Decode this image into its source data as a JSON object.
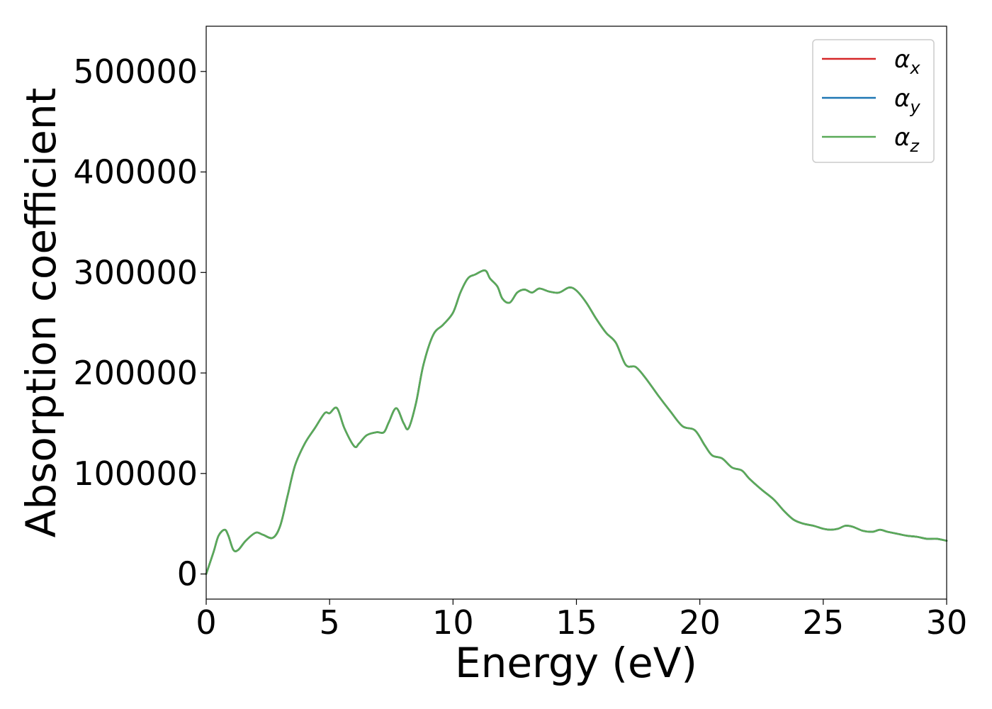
{
  "chart_data": {
    "type": "line",
    "xlabel": "Energy (eV)",
    "ylabel": "Absorption coefficient",
    "xlim": [
      0,
      30
    ],
    "ylim": [
      -25000,
      545000
    ],
    "xticks": [
      0,
      5,
      10,
      15,
      20,
      25,
      30
    ],
    "xtick_labels": [
      "0",
      "5",
      "10",
      "15",
      "20",
      "25",
      "30"
    ],
    "yticks": [
      0,
      100000,
      200000,
      300000,
      400000,
      500000
    ],
    "ytick_labels": [
      "0",
      "100000",
      "200000",
      "300000",
      "400000",
      "500000"
    ],
    "grid": false,
    "legend_position": "top-right",
    "x": [
      0,
      0.3,
      0.5,
      0.75,
      0.9,
      1.1,
      1.3,
      1.6,
      2.0,
      2.3,
      2.7,
      3.0,
      3.3,
      3.6,
      4.0,
      4.4,
      4.8,
      5.0,
      5.3,
      5.6,
      6.0,
      6.2,
      6.5,
      6.9,
      7.2,
      7.4,
      7.7,
      8.0,
      8.2,
      8.5,
      8.8,
      9.2,
      9.6,
      10.0,
      10.3,
      10.6,
      10.9,
      11.3,
      11.5,
      11.8,
      12.0,
      12.3,
      12.6,
      12.9,
      13.2,
      13.5,
      13.9,
      14.3,
      14.7,
      15.0,
      15.4,
      15.8,
      16.2,
      16.6,
      17.0,
      17.4,
      17.8,
      18.3,
      18.8,
      19.3,
      19.8,
      20.2,
      20.5,
      20.9,
      21.3,
      21.7,
      22.0,
      22.5,
      23.0,
      23.4,
      23.8,
      24.2,
      24.6,
      25.0,
      25.3,
      25.6,
      25.9,
      26.2,
      26.6,
      27.0,
      27.3,
      27.6,
      28.0,
      28.4,
      28.8,
      29.2,
      29.6,
      30.0
    ],
    "series": [
      {
        "name": "α_x",
        "color": "#d62728",
        "values": [
          0,
          22000,
          38000,
          44000,
          38000,
          24000,
          24000,
          33000,
          41000,
          39000,
          36000,
          48000,
          78000,
          108000,
          130000,
          145000,
          160000,
          160000,
          165000,
          145000,
          127000,
          130000,
          138000,
          141000,
          141000,
          151000,
          165000,
          150000,
          145000,
          170000,
          208000,
          238000,
          248000,
          260000,
          280000,
          294000,
          298000,
          302000,
          294000,
          286000,
          274000,
          270000,
          280000,
          283000,
          280000,
          284000,
          281000,
          280000,
          285000,
          282000,
          270000,
          254000,
          240000,
          230000,
          208000,
          206000,
          195000,
          178000,
          162000,
          147000,
          143000,
          128000,
          118000,
          115000,
          106000,
          103000,
          95000,
          84000,
          74000,
          63000,
          54000,
          50000,
          48000,
          45000,
          44000,
          45000,
          48000,
          47000,
          43000,
          42000,
          44000,
          42000,
          40000,
          38000,
          37000,
          35000,
          35000,
          33000
        ]
      },
      {
        "name": "α_y",
        "color": "#1f77b4",
        "values": [
          0,
          22000,
          38000,
          44000,
          38000,
          24000,
          24000,
          33000,
          41000,
          39000,
          36000,
          48000,
          78000,
          108000,
          130000,
          145000,
          160000,
          160000,
          165000,
          145000,
          127000,
          130000,
          138000,
          141000,
          141000,
          151000,
          165000,
          150000,
          145000,
          170000,
          208000,
          238000,
          248000,
          260000,
          280000,
          294000,
          298000,
          302000,
          294000,
          286000,
          274000,
          270000,
          280000,
          283000,
          280000,
          284000,
          281000,
          280000,
          285000,
          282000,
          270000,
          254000,
          240000,
          230000,
          208000,
          206000,
          195000,
          178000,
          162000,
          147000,
          143000,
          128000,
          118000,
          115000,
          106000,
          103000,
          95000,
          84000,
          74000,
          63000,
          54000,
          50000,
          48000,
          45000,
          44000,
          45000,
          48000,
          47000,
          43000,
          42000,
          44000,
          42000,
          40000,
          38000,
          37000,
          35000,
          35000,
          33000
        ]
      },
      {
        "name": "α_z",
        "color": "#5aaa58",
        "values": [
          0,
          22000,
          38000,
          44000,
          38000,
          24000,
          24000,
          33000,
          41000,
          39000,
          36000,
          48000,
          78000,
          108000,
          130000,
          145000,
          160000,
          160000,
          165000,
          145000,
          127000,
          130000,
          138000,
          141000,
          141000,
          151000,
          165000,
          150000,
          145000,
          170000,
          208000,
          238000,
          248000,
          260000,
          280000,
          294000,
          298000,
          302000,
          294000,
          286000,
          274000,
          270000,
          280000,
          283000,
          280000,
          284000,
          281000,
          280000,
          285000,
          282000,
          270000,
          254000,
          240000,
          230000,
          208000,
          206000,
          195000,
          178000,
          162000,
          147000,
          143000,
          128000,
          118000,
          115000,
          106000,
          103000,
          95000,
          84000,
          74000,
          63000,
          54000,
          50000,
          48000,
          45000,
          44000,
          45000,
          48000,
          47000,
          43000,
          42000,
          44000,
          42000,
          40000,
          38000,
          37000,
          35000,
          35000,
          33000
        ]
      }
    ]
  },
  "legend": {
    "entries": [
      {
        "symbol": "α",
        "subscript": "x"
      },
      {
        "symbol": "α",
        "subscript": "y"
      },
      {
        "symbol": "α",
        "subscript": "z"
      }
    ]
  }
}
